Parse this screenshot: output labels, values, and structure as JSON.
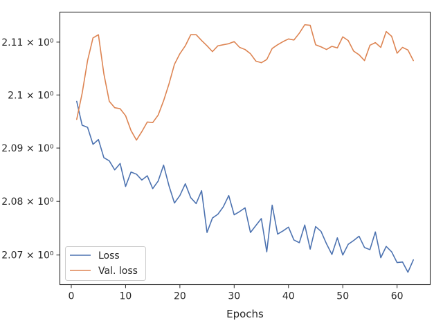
{
  "chart_data": {
    "type": "line",
    "title": "",
    "xlabel": "Epochs",
    "ylabel": "",
    "yscale": "log",
    "xlim": [
      -2.1,
      66.1
    ],
    "ylim": [
      2.0645,
      2.1157
    ],
    "xticks": [
      {
        "value": 0,
        "label": "0"
      },
      {
        "value": 10,
        "label": "10"
      },
      {
        "value": 20,
        "label": "20"
      },
      {
        "value": 30,
        "label": "30"
      },
      {
        "value": 40,
        "label": "40"
      },
      {
        "value": 50,
        "label": "50"
      },
      {
        "value": 60,
        "label": "60"
      }
    ],
    "yticks": [
      {
        "value": 2.07,
        "label": "2.07 × 10⁰"
      },
      {
        "value": 2.08,
        "label": "2.08 × 10⁰"
      },
      {
        "value": 2.09,
        "label": "2.09 × 10⁰"
      },
      {
        "value": 2.1,
        "label": "2.1 × 10⁰"
      },
      {
        "value": 2.11,
        "label": "2.11 × 10⁰"
      }
    ],
    "grid": false,
    "legend_position": "lower-left",
    "x": [
      1,
      2,
      3,
      4,
      5,
      6,
      7,
      8,
      9,
      10,
      11,
      12,
      13,
      14,
      15,
      16,
      17,
      18,
      19,
      20,
      21,
      22,
      23,
      24,
      25,
      26,
      27,
      28,
      29,
      30,
      31,
      32,
      33,
      34,
      35,
      36,
      37,
      38,
      39,
      40,
      41,
      42,
      43,
      44,
      45,
      46,
      47,
      48,
      49,
      50,
      51,
      52,
      53,
      54,
      55,
      56,
      57,
      58,
      59,
      60,
      61,
      62,
      63
    ],
    "series": [
      {
        "name": "Loss",
        "color": "#4c72b0",
        "values": [
          2.0988,
          2.0943,
          2.0939,
          2.0907,
          2.0916,
          2.0882,
          2.0876,
          2.0859,
          2.0871,
          2.0828,
          2.0855,
          2.0851,
          2.084,
          2.0848,
          2.0824,
          2.0838,
          2.0868,
          2.0829,
          2.0797,
          2.0811,
          2.0833,
          2.0807,
          2.0796,
          2.082,
          2.0742,
          2.0769,
          2.0776,
          2.079,
          2.0811,
          2.0775,
          2.0781,
          2.0788,
          2.0742,
          2.0755,
          2.0768,
          2.0706,
          2.0793,
          2.0739,
          2.0745,
          2.0752,
          2.0728,
          2.0723,
          2.0756,
          2.0711,
          2.0753,
          2.0744,
          2.0721,
          2.0701,
          2.0732,
          2.07,
          2.072,
          2.0727,
          2.0735,
          2.0714,
          2.071,
          2.0743,
          2.0695,
          2.0716,
          2.0706,
          2.0686,
          2.0687,
          2.0668,
          2.0691
        ]
      },
      {
        "name": "Val. loss",
        "color": "#dd8452",
        "values": [
          2.0954,
          2.1003,
          2.1065,
          2.1108,
          2.1114,
          2.104,
          2.0988,
          2.0976,
          2.0974,
          2.0961,
          2.0933,
          2.0915,
          2.0931,
          2.0949,
          2.0948,
          2.0962,
          2.0989,
          2.1021,
          2.1058,
          2.1078,
          2.1093,
          2.1114,
          2.1114,
          2.1103,
          2.1093,
          2.1082,
          2.1093,
          2.1095,
          2.1097,
          2.1101,
          2.109,
          2.1086,
          2.1078,
          2.1064,
          2.1061,
          2.1067,
          2.1088,
          2.1095,
          2.1101,
          2.1106,
          2.1104,
          2.1117,
          2.1133,
          2.1132,
          2.1095,
          2.1091,
          2.1086,
          2.1092,
          2.1089,
          2.111,
          2.1103,
          2.1083,
          2.1076,
          2.1065,
          2.1094,
          2.1099,
          2.109,
          2.112,
          2.1111,
          2.1079,
          2.109,
          2.1085,
          2.1065
        ]
      }
    ]
  }
}
